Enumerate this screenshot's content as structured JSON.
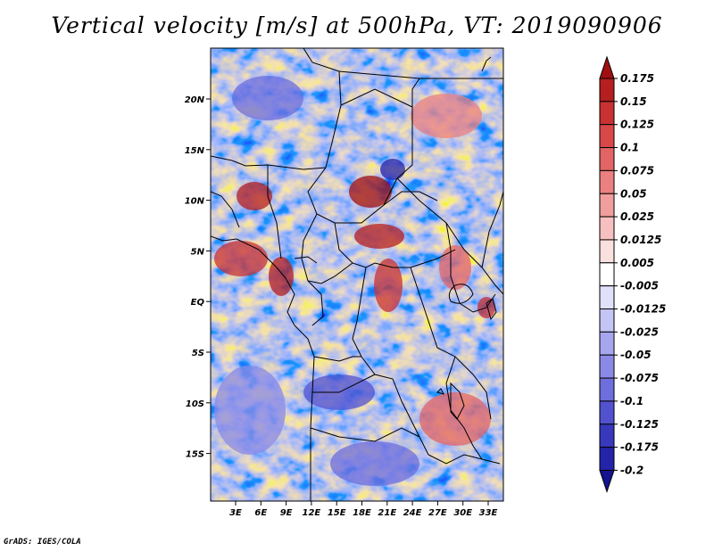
{
  "title": "Vertical velocity [m/s] at 500hPa, VT: 2019090906",
  "credit": "GrADS: IGES/COLA",
  "map": {
    "lat_labels": [
      "20N",
      "15N",
      "10N",
      "5N",
      "EQ",
      "5S",
      "10S",
      "15S"
    ],
    "lon_labels": [
      "3E",
      "6E",
      "9E",
      "12E",
      "15E",
      "18E",
      "21E",
      "24E",
      "27E",
      "30E",
      "33E"
    ]
  },
  "colorbar": {
    "levels": [
      "0.175",
      "0.15",
      "0.125",
      "0.1",
      "0.075",
      "0.05",
      "0.025",
      "0.0125",
      "0.005",
      "-0.005",
      "-0.0125",
      "-0.025",
      "-0.05",
      "-0.075",
      "-0.1",
      "-0.125",
      "-0.175",
      "-0.2"
    ],
    "colors": [
      "#a01010",
      "#b51f1f",
      "#c83232",
      "#d84848",
      "#e26464",
      "#ea8080",
      "#f19e9e",
      "#f7c0c0",
      "#fbe0e0",
      "#ffffff",
      "#e0e0fb",
      "#c4c4f5",
      "#a6a6ee",
      "#8a8ae6",
      "#6e6edc",
      "#5252cf",
      "#3838bd",
      "#2424a8",
      "#14148f"
    ]
  },
  "colors": {
    "positive": "#c83232",
    "negative": "#5252cf",
    "border": "#000000"
  }
}
